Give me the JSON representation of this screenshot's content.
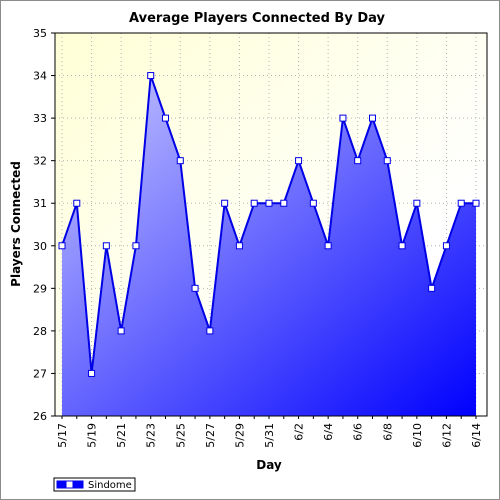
{
  "chart_data": {
    "type": "area",
    "title": "Average Players Connected By Day",
    "xlabel": "Day",
    "ylabel": "Players Connected",
    "ylim": [
      26,
      35
    ],
    "yticks": [
      26,
      27,
      28,
      29,
      30,
      31,
      32,
      33,
      34,
      35
    ],
    "x": [
      "5/17",
      "5/18",
      "5/19",
      "5/20",
      "5/21",
      "5/22",
      "5/23",
      "5/24",
      "5/25",
      "5/26",
      "5/27",
      "5/28",
      "5/29",
      "5/30",
      "5/31",
      "6/1",
      "6/2",
      "6/3",
      "6/4",
      "6/5",
      "6/6",
      "6/7",
      "6/8",
      "6/9",
      "6/10",
      "6/11",
      "6/12",
      "6/13",
      "6/14"
    ],
    "xtick_labels": [
      "5/17",
      "5/19",
      "5/21",
      "5/23",
      "5/25",
      "5/27",
      "5/29",
      "5/31",
      "6/2",
      "6/4",
      "6/6",
      "6/8",
      "6/10",
      "6/12",
      "6/14"
    ],
    "series": [
      {
        "name": "Sindome",
        "values": [
          30,
          31,
          27,
          30,
          28,
          30,
          34,
          33,
          32,
          29,
          28,
          31,
          30,
          31,
          31,
          31,
          32,
          31,
          30,
          33,
          32,
          33,
          32,
          30,
          31,
          29,
          30,
          31,
          31
        ]
      }
    ],
    "grid": true,
    "legend": "bottom-left",
    "colors": {
      "line": "#0000e6",
      "fill_light": "#c8c8ff",
      "fill_dark": "#0000ff",
      "plot_bg_top": "#ffffd6",
      "plot_bg_bottom": "#ffffff",
      "grid": "#b4b4b4"
    }
  }
}
